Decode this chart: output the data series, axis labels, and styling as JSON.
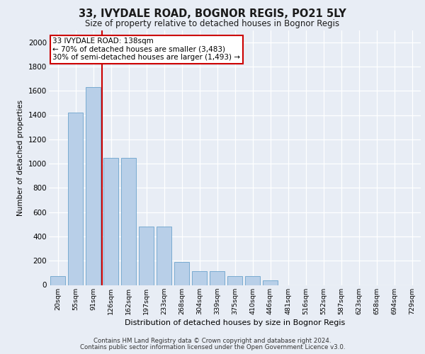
{
  "title_line1": "33, IVYDALE ROAD, BOGNOR REGIS, PO21 5LY",
  "title_line2": "Size of property relative to detached houses in Bognor Regis",
  "xlabel": "Distribution of detached houses by size in Bognor Regis",
  "ylabel": "Number of detached properties",
  "bar_labels": [
    "20sqm",
    "55sqm",
    "91sqm",
    "126sqm",
    "162sqm",
    "197sqm",
    "233sqm",
    "268sqm",
    "304sqm",
    "339sqm",
    "375sqm",
    "410sqm",
    "446sqm",
    "481sqm",
    "516sqm",
    "552sqm",
    "587sqm",
    "623sqm",
    "658sqm",
    "694sqm",
    "729sqm"
  ],
  "bar_values": [
    75,
    1420,
    1630,
    1050,
    1050,
    480,
    480,
    190,
    115,
    115,
    75,
    75,
    38,
    0,
    0,
    0,
    0,
    0,
    0,
    0,
    0
  ],
  "bar_color": "#b8cfe8",
  "bar_edge_color": "#6ba3cc",
  "ylim": [
    0,
    2100
  ],
  "yticks": [
    0,
    200,
    400,
    600,
    800,
    1000,
    1200,
    1400,
    1600,
    1800,
    2000
  ],
  "vline_x": 2.5,
  "annotation_text": "33 IVYDALE ROAD: 138sqm\n← 70% of detached houses are smaller (3,483)\n30% of semi-detached houses are larger (1,493) →",
  "annotation_box_color": "#ffffff",
  "annotation_box_edge": "#cc0000",
  "vline_color": "#cc0000",
  "footer_line1": "Contains HM Land Registry data © Crown copyright and database right 2024.",
  "footer_line2": "Contains public sector information licensed under the Open Government Licence v3.0.",
  "bg_color": "#e8edf5",
  "plot_bg_color": "#e8edf5"
}
